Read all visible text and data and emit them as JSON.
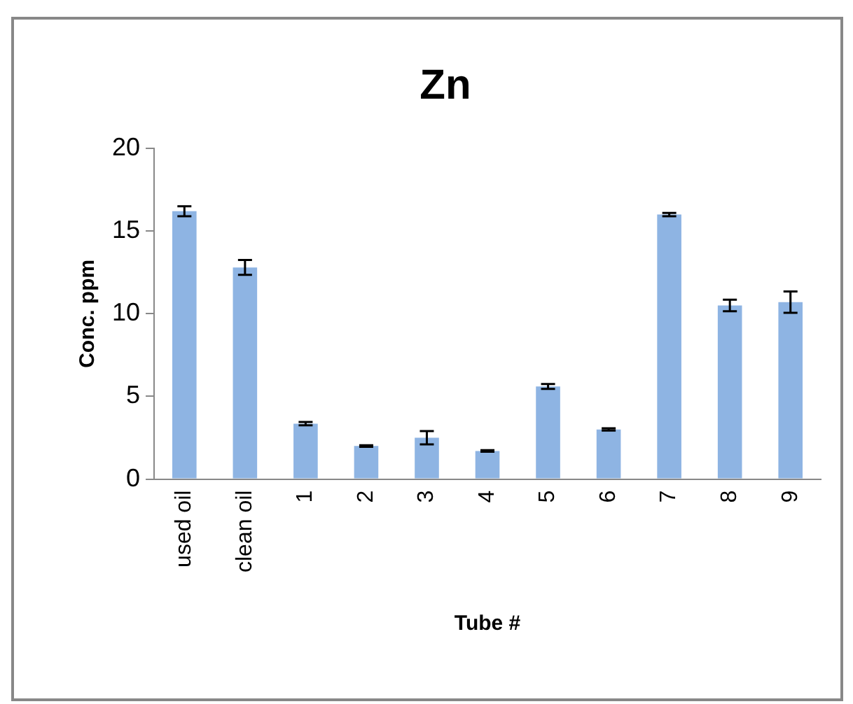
{
  "chart_data": {
    "type": "bar",
    "title": "Zn",
    "xlabel": "Tube #",
    "ylabel": "Conc. ppm",
    "categories": [
      "used oil",
      "clean oil",
      "1",
      "2",
      "3",
      "4",
      "5",
      "6",
      "7",
      "8",
      "9"
    ],
    "values": [
      16.2,
      12.8,
      3.35,
      2.0,
      2.5,
      1.7,
      5.6,
      3.0,
      16.0,
      10.5,
      10.7
    ],
    "errors": [
      0.3,
      0.45,
      0.1,
      0.05,
      0.4,
      0.05,
      0.15,
      0.07,
      0.1,
      0.35,
      0.65
    ],
    "color": "#8eb4e3",
    "ylim": [
      0,
      20
    ],
    "yticks": [
      0,
      5,
      10,
      15,
      20
    ],
    "grid": false,
    "legend": false
  }
}
